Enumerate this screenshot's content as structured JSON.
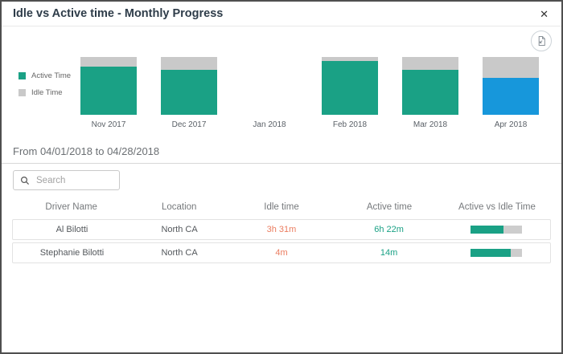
{
  "header": {
    "title": "Idle vs Active time - Monthly Progress",
    "close_label": "✕"
  },
  "toolbar": {
    "export_icon": "export-report-icon"
  },
  "chart_data": {
    "type": "bar",
    "stacked": true,
    "categories": [
      "Nov 2017",
      "Dec 2017",
      "Jan 2018",
      "Feb 2018",
      "Mar 2018",
      "Apr 2018"
    ],
    "series": [
      {
        "name": "Active Time",
        "color": "#1aa185",
        "values": [
          83,
          78,
          null,
          93,
          78,
          64
        ]
      },
      {
        "name": "Idle Time",
        "color": "#c9c9c9",
        "values": [
          17,
          22,
          null,
          7,
          22,
          36
        ]
      }
    ],
    "value_unit": "percent of month total",
    "ylim": [
      0,
      100
    ],
    "legend_position": "left",
    "grid": false,
    "highlight": {
      "index": 5,
      "color": "#1797db",
      "meaning": "selected month"
    }
  },
  "filters": {
    "date_range_label": "From 04/01/2018 to 04/28/2018",
    "search_placeholder": "Search"
  },
  "table": {
    "columns": [
      "Driver Name",
      "Location",
      "Idle time",
      "Active time",
      "Active vs Idle Time"
    ],
    "rows": [
      {
        "driver_name": "Al Bilotti",
        "location": "North CA",
        "idle_time": "3h 31m",
        "active_time": "6h 22m",
        "active_pct": 64
      },
      {
        "driver_name": "Stephanie Bilotti",
        "location": "North CA",
        "idle_time": "4m",
        "active_time": "14m",
        "active_pct": 78
      }
    ]
  },
  "colors": {
    "active": "#1aa185",
    "idle": "#c9c9c9",
    "selected_month": "#1797db",
    "idle_text": "#eb7d60",
    "active_text": "#1aa185"
  }
}
